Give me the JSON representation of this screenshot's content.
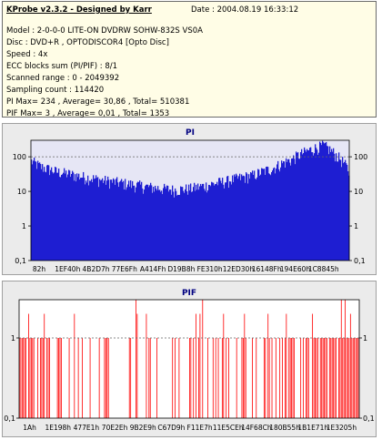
{
  "info": {
    "title": "KProbe v2.3.2 - Designed by Karr",
    "date": "Date : 2004.08.19 16:33:12",
    "model": "Model : 2-0-0-0 LITE-ON DVDRW SOHW-832S  VS0A",
    "disc": "Disc : DVD+R ,  OPTODISCOR4 [Opto Disc]",
    "speed": "Speed : 4x",
    "ecc": "ECC blocks sum (PI/PIF) : 8/1",
    "scanned_range": "Scanned range : 0 - 2049392",
    "sampling_count": "Sampling count : 114420",
    "pi_stats": "PI Max= 234 , Average= 30,86 , Total= 510381",
    "pif_stats": "PIF Max= 3 , Average= 0,01 , Total= 1353"
  },
  "colors": {
    "bar": "#1e1ed2",
    "pif_bar": "#ff0000",
    "plot_bg": "#e6e6f5",
    "ref_line": "#646464"
  },
  "chart_data": [
    {
      "type": "bar",
      "title": "PI",
      "y_scale": "log",
      "ylim": [
        0.1,
        300
      ],
      "y_ticks": [
        "100",
        "10",
        "1",
        "0,1"
      ],
      "reference_line": 100,
      "x_ticks": [
        "82h",
        "1EF40h",
        "4B2D7h",
        "77E6Fh",
        "A414Fh",
        "D19B8h",
        "FE310h",
        "12ED30h",
        "16148Fh",
        "194E60h",
        "1C8845h"
      ],
      "series_profile": {
        "x_fraction": [
          0.0,
          0.03,
          0.08,
          0.15,
          0.22,
          0.3,
          0.38,
          0.45,
          0.5,
          0.55,
          0.62,
          0.7,
          0.76,
          0.82,
          0.87,
          0.92,
          0.96,
          1.0
        ],
        "values": [
          80,
          55,
          40,
          30,
          23,
          18,
          14,
          12,
          13,
          16,
          22,
          32,
          50,
          90,
          160,
          230,
          120,
          40
        ]
      }
    },
    {
      "type": "bar",
      "title": "PIF",
      "y_scale": "log",
      "ylim": [
        0.1,
        3
      ],
      "y_ticks": [
        "1",
        "0,1"
      ],
      "reference_line": 1,
      "max": 3,
      "x_ticks": [
        "1Ah",
        "1E198h",
        "477E1h",
        "70E2Eh",
        "9B2E9h",
        "C67D9h",
        "F11E7h",
        "11E5CEh",
        "14F68Ch",
        "180B55h",
        "1B1E71h",
        "1E3205h"
      ],
      "density_profile": {
        "x_fraction": [
          0.0,
          0.1,
          0.2,
          0.35,
          0.5,
          0.6,
          0.7,
          0.8,
          0.9,
          1.0
        ],
        "hit_probability": [
          0.9,
          0.45,
          0.35,
          0.3,
          0.25,
          0.3,
          0.4,
          0.55,
          0.85,
          0.9
        ]
      }
    }
  ]
}
